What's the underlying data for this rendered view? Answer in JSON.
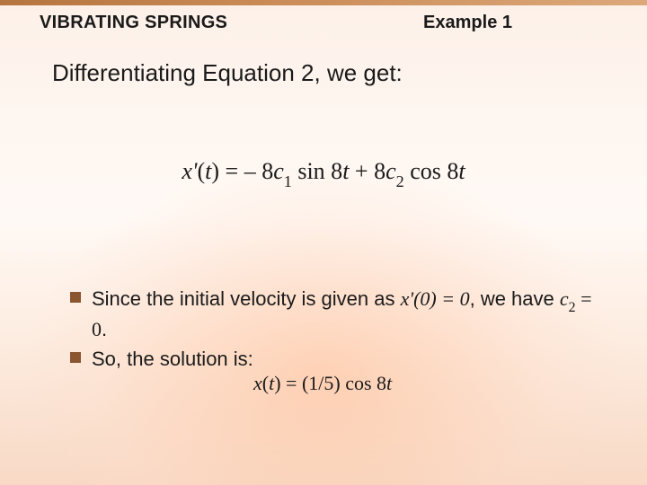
{
  "colors": {
    "topbar_start": "#b6753f",
    "topbar_end": "#dca87a",
    "bullet_marker": "#8a552f",
    "text": "#1a1a1a",
    "bg_top": "#fdf0e8",
    "bg_bottom": "#f8d9c5"
  },
  "fonts": {
    "body_family": "Arial, Helvetica, sans-serif",
    "math_family": "\"Times New Roman\", Times, serif",
    "section_title_pt": 20,
    "example_label_pt": 20,
    "lead_pt": 26,
    "equation_pt": 26,
    "bullet_pt": 22,
    "solution_pt": 22
  },
  "header": {
    "section_title": "VIBRATING SPRINGS",
    "example_label": "Example 1"
  },
  "lead_text": "Differentiating Equation 2, we get:",
  "equation": {
    "lhs_var": "x'",
    "lhs_arg": "t",
    "term1_coeff": "– 8",
    "term1_const": "c",
    "term1_sub": "1",
    "term1_func": " sin 8",
    "term1_var": "t",
    "plus": " + 8",
    "term2_const": "c",
    "term2_sub": "2",
    "term2_func": " cos 8",
    "term2_var": "t"
  },
  "bullets": [
    {
      "pre": "Since the initial velocity is given as ",
      "math1": "x'(0) = 0",
      "mid": ", we have ",
      "math2_sym": "c",
      "math2_sub": "2",
      "math2_rest": " = 0",
      "post": "."
    },
    {
      "pre": "So, the solution is:",
      "math1": "",
      "mid": "",
      "math2_sym": "",
      "math2_sub": "",
      "math2_rest": "",
      "post": ""
    }
  ],
  "solution": {
    "lhs_var": "x",
    "lhs_arg": "t",
    "rhs_frac": "(1/5) cos 8",
    "rhs_var": "t"
  }
}
